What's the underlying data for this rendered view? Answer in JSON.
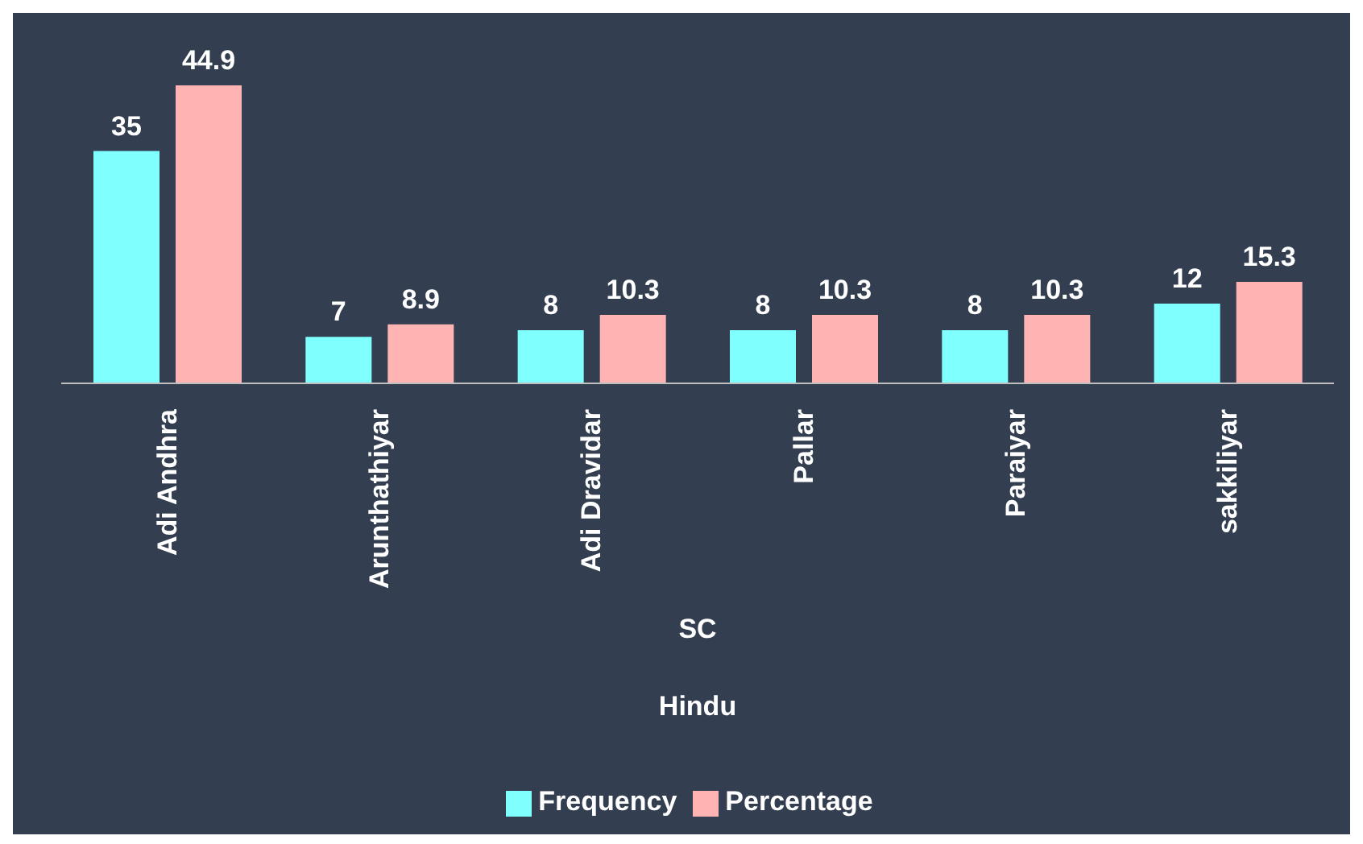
{
  "chart_data": {
    "type": "bar",
    "categories": [
      "Adi Andhra",
      "Arunthathiyar",
      "Adi Dravidar",
      "Pallar",
      "Paraiyar",
      "sakkiliyar"
    ],
    "series": [
      {
        "name": "Frequency",
        "color": "#80ffff",
        "values": [
          35,
          7,
          8,
          8,
          8,
          12
        ]
      },
      {
        "name": "Percentage",
        "color": "#ffb3b3",
        "values": [
          44.9,
          8.9,
          10.3,
          10.3,
          10.3,
          15.3
        ]
      }
    ],
    "data_labels": true,
    "legend": "bottom",
    "grid": false,
    "annotations": [
      "SC",
      "Hindu"
    ]
  }
}
